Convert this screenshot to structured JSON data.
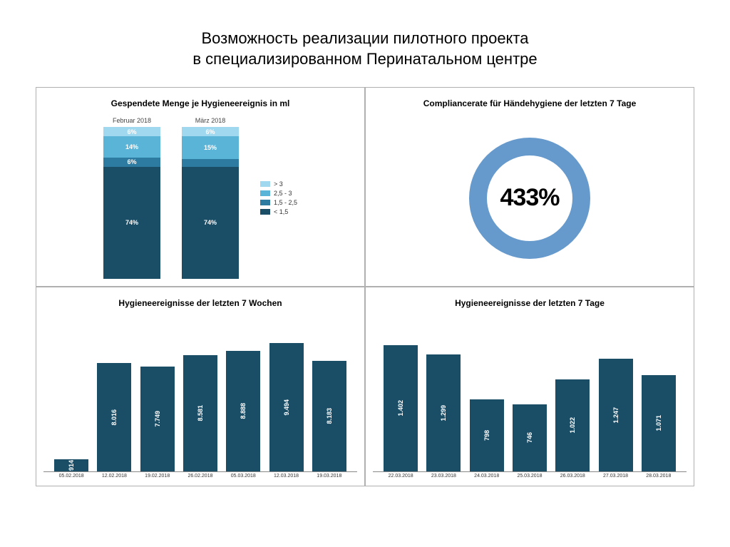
{
  "title_line1": "Возможность реализации пилотного проекта",
  "title_line2": "в специализированном Перинатальном центре",
  "colors": {
    "dark_blue": "#1a4d66",
    "mid_blue": "#2d7ba0",
    "light_blue": "#5ab4d8",
    "lightest_blue": "#a0d8f0",
    "donut_ring": "#6699cc",
    "bar_fill": "#1a4d66",
    "panel_border": "#b0b0b0"
  },
  "q1": {
    "title": "Gespendete Menge je Hygieneereignis in ml",
    "columns": [
      {
        "label": "Februar 2018",
        "segments": [
          {
            "value": "6%",
            "pct": 6,
            "color": "#a0d8f0"
          },
          {
            "value": "14%",
            "pct": 14,
            "color": "#5ab4d8"
          },
          {
            "value": "6%",
            "pct": 6,
            "color": "#2d7ba0"
          },
          {
            "value": "74%",
            "pct": 74,
            "color": "#1a4d66"
          }
        ]
      },
      {
        "label": "März 2018",
        "segments": [
          {
            "value": "6%",
            "pct": 6,
            "color": "#a0d8f0"
          },
          {
            "value": "15%",
            "pct": 15,
            "color": "#5ab4d8"
          },
          {
            "value": "",
            "pct": 5,
            "color": "#2d7ba0"
          },
          {
            "value": "74%",
            "pct": 74,
            "color": "#1a4d66"
          }
        ]
      }
    ],
    "legend": [
      {
        "color": "#a0d8f0",
        "label": "> 3"
      },
      {
        "color": "#5ab4d8",
        "label": "2,5 - 3"
      },
      {
        "color": "#2d7ba0",
        "label": "1,5 - 2,5"
      },
      {
        "color": "#1a4d66",
        "label": "< 1,5"
      }
    ]
  },
  "q2": {
    "title": "Compliancerate für Händehygiene der letzten 7 Tage",
    "value": "433%",
    "ring_color": "#6699cc"
  },
  "q3": {
    "title": "Hygieneereignisse der letzten 7 Wochen",
    "type": "bar",
    "max": 10000,
    "bar_color": "#1a4d66",
    "bars": [
      {
        "label": "05.02.2018",
        "value": 914,
        "display": "914"
      },
      {
        "label": "12.02.2018",
        "value": 8016,
        "display": "8.016"
      },
      {
        "label": "19.02.2018",
        "value": 7749,
        "display": "7.749"
      },
      {
        "label": "26.02.2018",
        "value": 8581,
        "display": "8.581"
      },
      {
        "label": "05.03.2018",
        "value": 8888,
        "display": "8.888"
      },
      {
        "label": "12.03.2018",
        "value": 9494,
        "display": "9.494"
      },
      {
        "label": "19.03.2018",
        "value": 8183,
        "display": "8.183"
      }
    ]
  },
  "q4": {
    "title": "Hygieneereignisse der letzten 7 Tage",
    "type": "bar",
    "max": 1500,
    "bar_color": "#1a4d66",
    "bars": [
      {
        "label": "22.03.2018",
        "value": 1402,
        "display": "1.402"
      },
      {
        "label": "23.03.2018",
        "value": 1299,
        "display": "1.299"
      },
      {
        "label": "24.03.2018",
        "value": 798,
        "display": "798"
      },
      {
        "label": "25.03.2018",
        "value": 746,
        "display": "746"
      },
      {
        "label": "26.03.2018",
        "value": 1022,
        "display": "1.022"
      },
      {
        "label": "27.03.2018",
        "value": 1247,
        "display": "1.247"
      },
      {
        "label": "28.03.2018",
        "value": 1071,
        "display": "1.071"
      }
    ]
  }
}
